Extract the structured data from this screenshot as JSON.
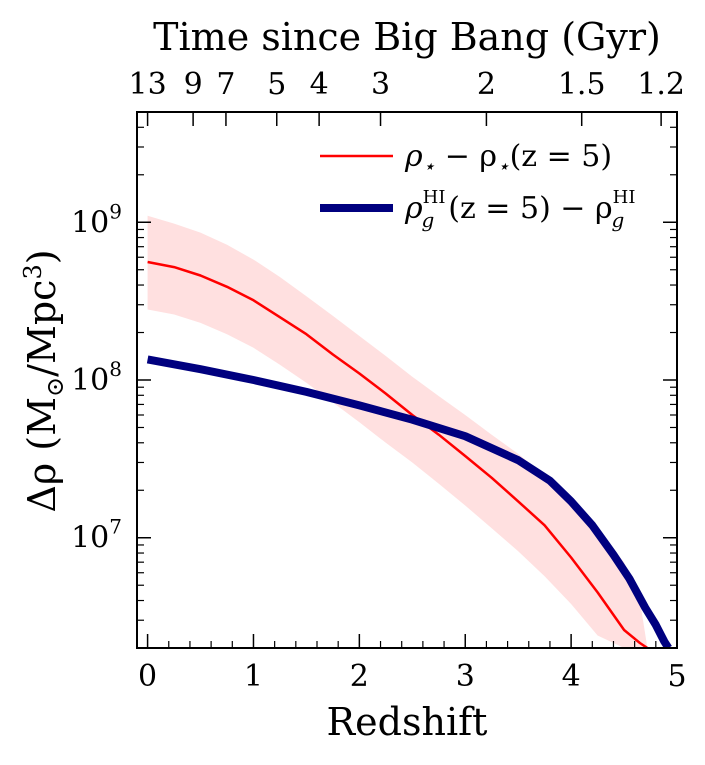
{
  "chart_data": {
    "type": "line",
    "top_axis_title": "Time since Big Bang (Gyr)",
    "top_ticks": [
      {
        "label": "13",
        "z": 0.0
      },
      {
        "label": "9",
        "z": 0.43
      },
      {
        "label": "7",
        "z": 0.74
      },
      {
        "label": "5",
        "z": 1.22
      },
      {
        "label": "4",
        "z": 1.62
      },
      {
        "label": "3",
        "z": 2.2
      },
      {
        "label": "2",
        "z": 3.2
      },
      {
        "label": "1.5",
        "z": 4.1
      },
      {
        "label": "1.2",
        "z": 4.85
      }
    ],
    "xlabel": "Redshift",
    "xlim": [
      -0.1,
      5.0
    ],
    "x_ticks": [
      0,
      1,
      2,
      3,
      4,
      5
    ],
    "x_tick_labels": [
      "0",
      "1",
      "2",
      "3",
      "4",
      "5"
    ],
    "ylabel_parts": {
      "prefix": "Δρ (M",
      "sub": "⊙",
      "mid": "/Mpc",
      "sup": "3",
      "suffix": ")"
    },
    "ylim": [
      2000000.0,
      5000000000.0
    ],
    "y_scale": "log",
    "y_ticks": [
      {
        "value": 10000000.0,
        "base": "10",
        "exp": "7"
      },
      {
        "value": 100000000.0,
        "base": "10",
        "exp": "8"
      },
      {
        "value": 1000000000.0,
        "base": "10",
        "exp": "9"
      }
    ],
    "legend_position": "top-right",
    "series": [
      {
        "name": "ρ⋆ − ρ⋆(z = 5)",
        "color": "#ff0000",
        "style": "thin",
        "x": [
          0,
          0.25,
          0.5,
          0.75,
          1.0,
          1.25,
          1.5,
          1.75,
          2.0,
          2.25,
          2.5,
          2.75,
          3.0,
          3.25,
          3.5,
          3.75,
          4.0,
          4.25,
          4.5,
          4.65,
          4.72
        ],
        "y": [
          560000000.0,
          520000000.0,
          460000000.0,
          390000000.0,
          320000000.0,
          250000000.0,
          195000000.0,
          145000000.0,
          110000000.0,
          82000000.0,
          60000000.0,
          45000000.0,
          33000000.0,
          24000000.0,
          17000000.0,
          12000000.0,
          7500000.0,
          4500000.0,
          2600000.0,
          2150000.0,
          2000000.0
        ],
        "band_upper": [
          1100000000.0,
          980000000.0,
          860000000.0,
          720000000.0,
          580000000.0,
          450000000.0,
          340000000.0,
          255000000.0,
          190000000.0,
          142000000.0,
          105000000.0,
          79000000.0,
          60000000.0,
          45000000.0,
          34000000.0,
          25000000.0,
          17000000.0,
          11000000.0,
          7000000.0,
          4000000.0,
          2000000.0
        ],
        "band_lower": [
          280000000.0,
          260000000.0,
          230000000.0,
          195000000.0,
          160000000.0,
          125000000.0,
          96000000.0,
          72000000.0,
          54000000.0,
          40000000.0,
          30000000.0,
          22000000.0,
          16000000.0,
          11500000.0,
          8200000.0,
          5700000.0,
          3800000.0,
          2400000.0,
          2000000.0,
          2000000.0,
          2000000.0
        ],
        "band_color": "#ffe0e0"
      },
      {
        "name": "ρgHI(z = 5) − ρgHI",
        "color": "#00007f",
        "style": "thick",
        "x": [
          0,
          0.5,
          1.0,
          1.5,
          2.0,
          2.5,
          3.0,
          3.5,
          3.8,
          4.0,
          4.2,
          4.4,
          4.55,
          4.7,
          4.8,
          4.88,
          4.92
        ],
        "y": [
          135000000.0,
          117000000.0,
          100000000.0,
          84000000.0,
          69000000.0,
          56000000.0,
          44000000.0,
          31000000.0,
          23000000.0,
          17000000.0,
          12000000.0,
          7800000.0,
          5500000.0,
          3600000.0,
          2800000.0,
          2200000.0,
          2000000.0
        ]
      }
    ],
    "legend": [
      {
        "sym": "ρ",
        "sub": "⋆",
        "rest": " − ρ",
        "sub2": "⋆",
        "tail": "(z = 5)"
      },
      {
        "sym": "ρ",
        "sup": "HI",
        "sub": "g",
        "rest": "(z = 5) − ρ",
        "sup2": "HI",
        "sub2": "g"
      }
    ]
  }
}
